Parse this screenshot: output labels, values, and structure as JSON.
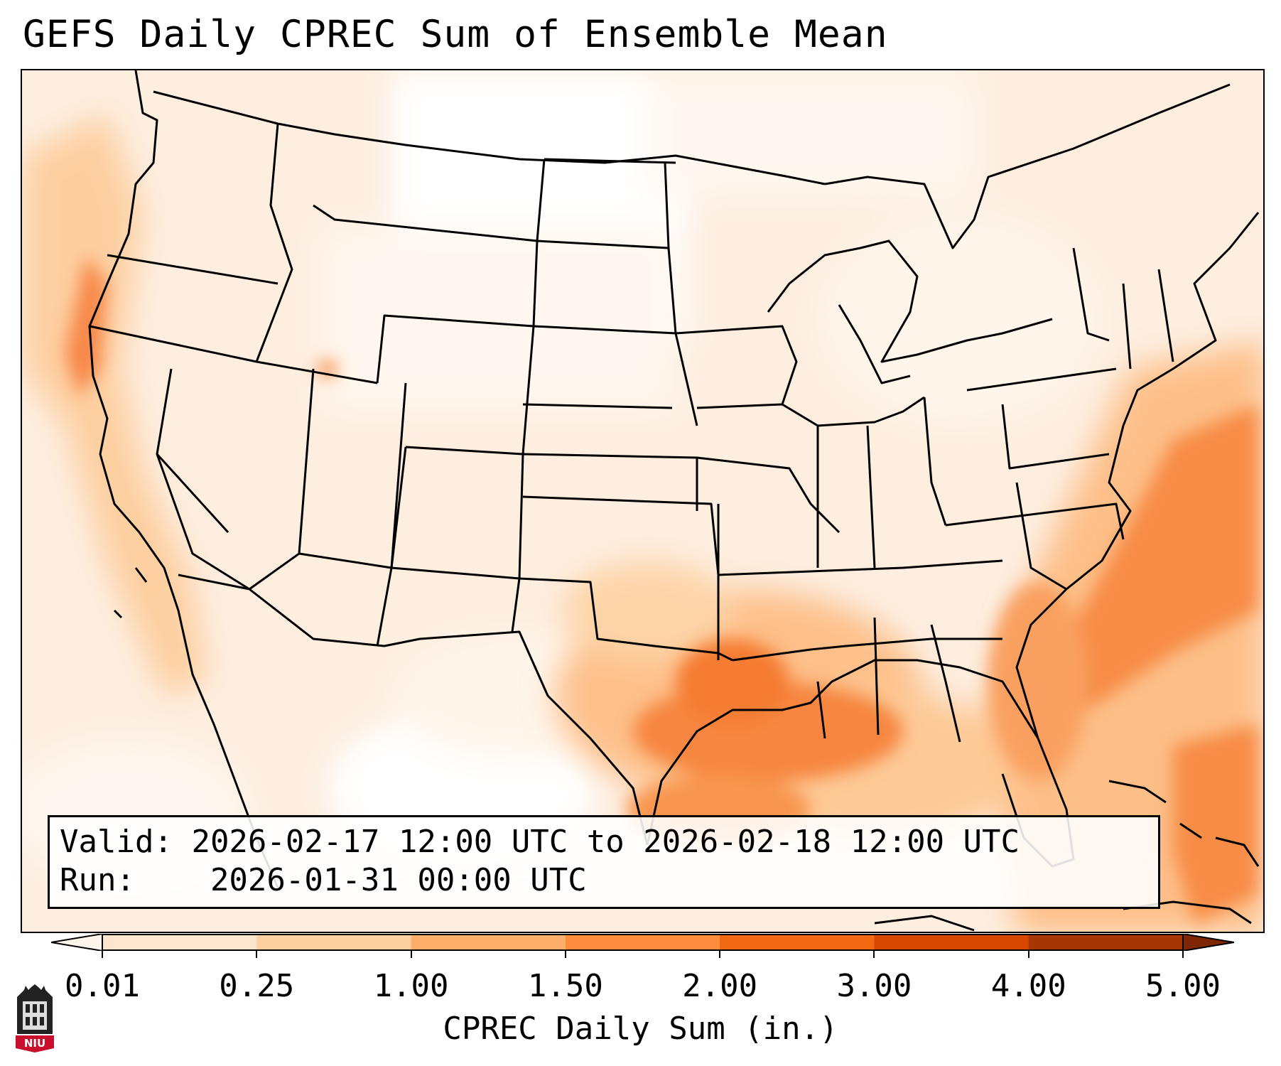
{
  "title": "GEFS Daily CPREC Sum of Ensemble Mean",
  "info": {
    "valid_label": "Valid:",
    "valid_text": "2026-02-17 12:00 UTC to 2026-02-18 12:00 UTC",
    "run_label": "Run:",
    "run_text": "2026-01-31 00:00 UTC"
  },
  "colorbar": {
    "label": "CPREC Daily Sum (in.)",
    "ticks": [
      "0.01",
      "0.25",
      "1.00",
      "1.50",
      "2.00",
      "3.00",
      "4.00",
      "5.00"
    ],
    "colors": [
      "#fff5eb",
      "#fee6ce",
      "#fdd0a2",
      "#fdae6b",
      "#fd8d3c",
      "#f16913",
      "#d94801",
      "#a63603"
    ],
    "extend": "both"
  },
  "map": {
    "region": "Contiguous United States",
    "coastline_color": "#000000",
    "precip_pattern": "heaviest over Louisiana, Mississippi coast, Gulf of Mexico and western Atlantic; moderate along Pacific coast"
  },
  "logo": {
    "text": "NIU",
    "icon": "niu-tower-logo-icon",
    "colors": {
      "red": "#c8102e",
      "dark": "#222222"
    }
  }
}
